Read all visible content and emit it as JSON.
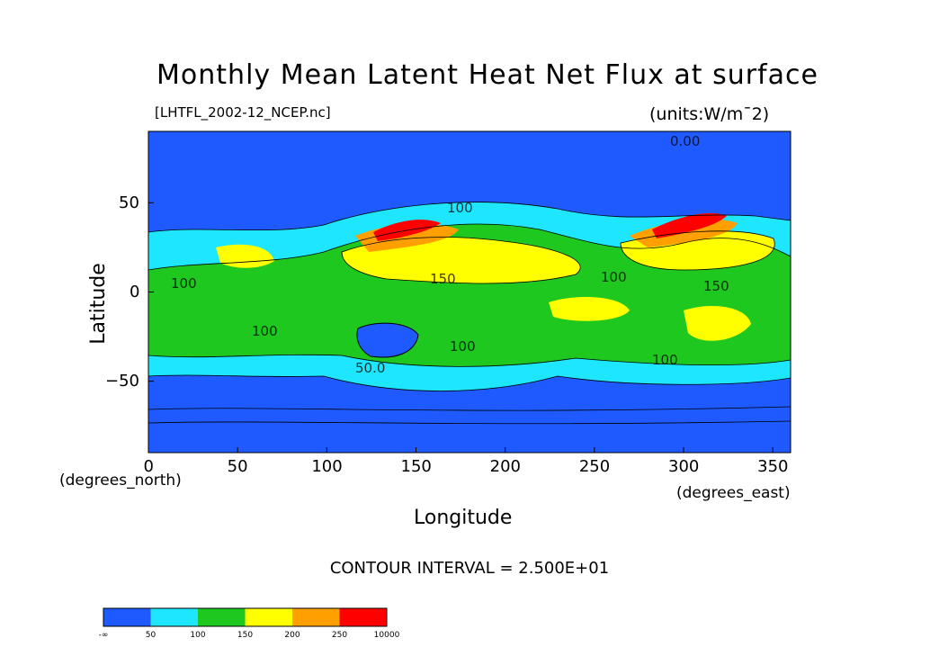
{
  "chart_data": {
    "type": "heatmap",
    "title": "Monthly Mean Latent Heat Net Flux at surface",
    "file_label": "[LHTFL_2002-12_NCEP.nc]",
    "units_label": "(units:W/m¯2)",
    "xlabel": "Longitude",
    "ylabel": "Latitude",
    "x_units": "(degrees_east)",
    "y_units": "(degrees_north)",
    "xlim": [
      0,
      360
    ],
    "ylim": [
      -90,
      90
    ],
    "x_ticks": [
      0,
      50,
      100,
      150,
      200,
      250,
      300,
      350
    ],
    "y_ticks": [
      50,
      0,
      -50
    ],
    "y_tick_labels": [
      "50",
      "0",
      "−50"
    ],
    "contour_interval_text": "CONTOUR INTERVAL = 2.500E+01",
    "contour_labels": [
      "0.00",
      "100",
      "150",
      "100",
      "100",
      "100",
      "50.0",
      "100",
      "100",
      "150"
    ],
    "colorbar": {
      "levels": [
        "-∞",
        "50",
        "100",
        "150",
        "200",
        "250",
        "10000"
      ],
      "colors": [
        "#1e5aff",
        "#1ee6ff",
        "#1ec81e",
        "#ffff00",
        "#ffa000",
        "#ff0000"
      ]
    }
  }
}
